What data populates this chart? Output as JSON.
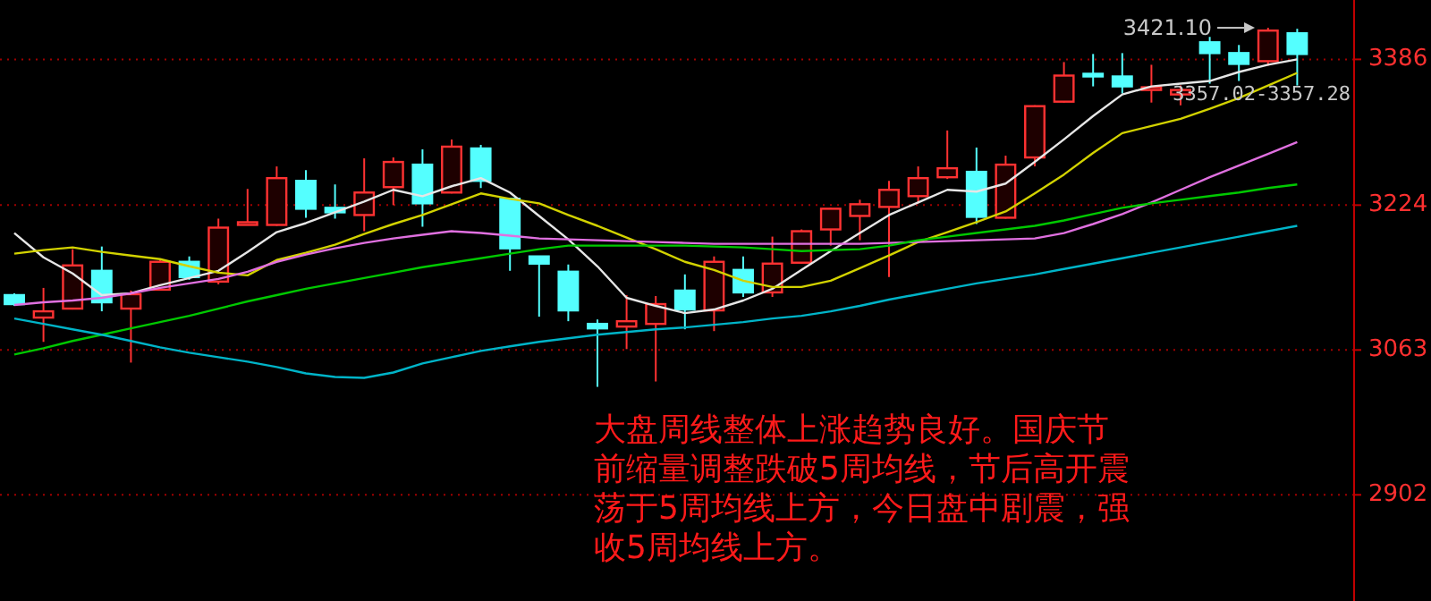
{
  "chart_data": {
    "type": "candlestick",
    "ylim": [
      2784,
      3452
    ],
    "yticks": [
      2902,
      3063,
      3224,
      3386
    ],
    "grid": "y",
    "tick_labels": "y",
    "categories": [
      null,
      null,
      null,
      null,
      null,
      null,
      null,
      null,
      null,
      null,
      null,
      null,
      null,
      null,
      null,
      null,
      null,
      null,
      null,
      null,
      null,
      null,
      null,
      null,
      null,
      null,
      null,
      null,
      null,
      null,
      null,
      null,
      null,
      null,
      null,
      null,
      null,
      null,
      null,
      null,
      null,
      null,
      null,
      null,
      null
    ],
    "ohlc": [
      [
        3124,
        3126,
        3112,
        3114
      ],
      [
        3099,
        3132,
        3072,
        3106
      ],
      [
        3109,
        3175,
        3108,
        3157
      ],
      [
        3151,
        3178,
        3106,
        3116
      ],
      [
        3109,
        3129,
        3049,
        3125
      ],
      [
        3130,
        3163,
        3130,
        3161
      ],
      [
        3161,
        3167,
        3141,
        3144
      ],
      [
        3139,
        3209,
        3136,
        3199
      ],
      [
        3203,
        3242,
        3202,
        3205
      ],
      [
        3202,
        3267,
        3201,
        3254
      ],
      [
        3251,
        3263,
        3210,
        3220
      ],
      [
        3221,
        3247,
        3209,
        3216
      ],
      [
        3213,
        3276,
        3195,
        3238
      ],
      [
        3244,
        3277,
        3224,
        3272
      ],
      [
        3269,
        3286,
        3200,
        3226
      ],
      [
        3238,
        3297,
        3237,
        3289
      ],
      [
        3287,
        3291,
        3243,
        3251
      ],
      [
        3231,
        3232,
        3151,
        3176
      ],
      [
        3167,
        3167,
        3100,
        3159
      ],
      [
        3150,
        3158,
        3095,
        3107
      ],
      [
        3092,
        3097,
        3022,
        3087
      ],
      [
        3089,
        3124,
        3064,
        3095
      ],
      [
        3092,
        3123,
        3028,
        3114
      ],
      [
        3129,
        3147,
        3086,
        3108
      ],
      [
        3107,
        3167,
        3084,
        3161
      ],
      [
        3152,
        3167,
        3122,
        3127
      ],
      [
        3127,
        3189,
        3122,
        3159
      ],
      [
        3160,
        3197,
        3159,
        3195
      ],
      [
        3197,
        3221,
        3179,
        3220
      ],
      [
        3212,
        3230,
        3185,
        3225
      ],
      [
        3222,
        3251,
        3144,
        3241
      ],
      [
        3234,
        3267,
        3226,
        3254
      ],
      [
        3255,
        3307,
        3253,
        3265
      ],
      [
        3261,
        3288,
        3203,
        3211
      ],
      [
        3210,
        3279,
        3209,
        3269
      ],
      [
        3277,
        3335,
        3267,
        3334
      ],
      [
        3339,
        3383,
        3338,
        3368
      ],
      [
        3370,
        3392,
        3356,
        3368
      ],
      [
        3367,
        3393,
        3348,
        3356
      ],
      [
        3353,
        3380,
        3338,
        3355
      ],
      [
        3347,
        3357,
        3335,
        3352
      ],
      [
        3405,
        3411,
        3359,
        3393
      ],
      [
        3393,
        3402,
        3362,
        3381
      ],
      [
        3384,
        3421.1,
        3379,
        3418
      ],
      [
        3415,
        3420,
        3357,
        3392
      ]
    ],
    "series": [
      {
        "type": "line",
        "color": "#e6e6e6",
        "values": [
          3193,
          3166,
          3148,
          3124,
          3126,
          3135,
          3143,
          3151,
          3172,
          3194,
          3204,
          3216,
          3228,
          3241,
          3234,
          3245,
          3254,
          3238,
          3212,
          3186,
          3156,
          3121,
          3112,
          3104,
          3108,
          3118,
          3131,
          3152,
          3173,
          3193,
          3213,
          3227,
          3241,
          3239,
          3248,
          3272,
          3297,
          3323,
          3347,
          3356,
          3359,
          3362,
          3372,
          3380,
          3386
        ]
      },
      {
        "type": "line",
        "color": "#d2d200",
        "values": [
          3170,
          3174,
          3177,
          3172,
          3168,
          3164,
          3156,
          3149,
          3146,
          3163,
          3171,
          3180,
          3192,
          3203,
          3213,
          3225,
          3237,
          3231,
          3226,
          3213,
          3201,
          3188,
          3175,
          3161,
          3152,
          3140,
          3133,
          3133,
          3140,
          3154,
          3168,
          3183,
          3194,
          3205,
          3217,
          3237,
          3258,
          3282,
          3304,
          3312,
          3320,
          3331,
          3343,
          3357,
          3371
        ]
      },
      {
        "type": "line",
        "color": "#e070e0",
        "values": [
          3113,
          3116,
          3118,
          3121,
          3126,
          3132,
          3137,
          3142,
          3150,
          3161,
          3169,
          3176,
          3182,
          3187,
          3191,
          3195,
          3193,
          3190,
          3187,
          3186,
          3185,
          3184,
          3183,
          3182,
          3181,
          3181,
          3181,
          3181,
          3181,
          3181,
          3182,
          3183,
          3184,
          3185,
          3186,
          3187,
          3193,
          3203,
          3214,
          3227,
          3241,
          3255,
          3268,
          3281,
          3294
        ]
      },
      {
        "type": "line",
        "color": "#00c800",
        "values": [
          3058,
          3065,
          3073,
          3080,
          3087,
          3094,
          3101,
          3109,
          3117,
          3124,
          3131,
          3137,
          3143,
          3149,
          3155,
          3160,
          3165,
          3170,
          3175,
          3179,
          3179,
          3179,
          3179,
          3179,
          3178,
          3177,
          3175,
          3173,
          3174,
          3175,
          3179,
          3185,
          3189,
          3193,
          3197,
          3201,
          3207,
          3214,
          3221,
          3226,
          3230,
          3234,
          3238,
          3243,
          3247
        ]
      },
      {
        "type": "line",
        "color": "#00b4c8",
        "values": [
          3098,
          3092,
          3086,
          3080,
          3073,
          3066,
          3060,
          3055,
          3050,
          3044,
          3037,
          3033,
          3032,
          3038,
          3048,
          3055,
          3062,
          3067,
          3072,
          3076,
          3080,
          3083,
          3086,
          3088,
          3091,
          3094,
          3098,
          3101,
          3106,
          3112,
          3119,
          3125,
          3131,
          3137,
          3142,
          3147,
          3153,
          3159,
          3165,
          3171,
          3177,
          3183,
          3189,
          3195,
          3201
        ]
      }
    ],
    "annotations": [
      "3421.10",
      "3357.02-3357.28",
      "大盘周线整体上涨趋势良好。国庆节前缩量调整跌破5周均线，节后高开震荡于5周均线上方，今日盘中剧震，强收5周均线上方。"
    ]
  }
}
